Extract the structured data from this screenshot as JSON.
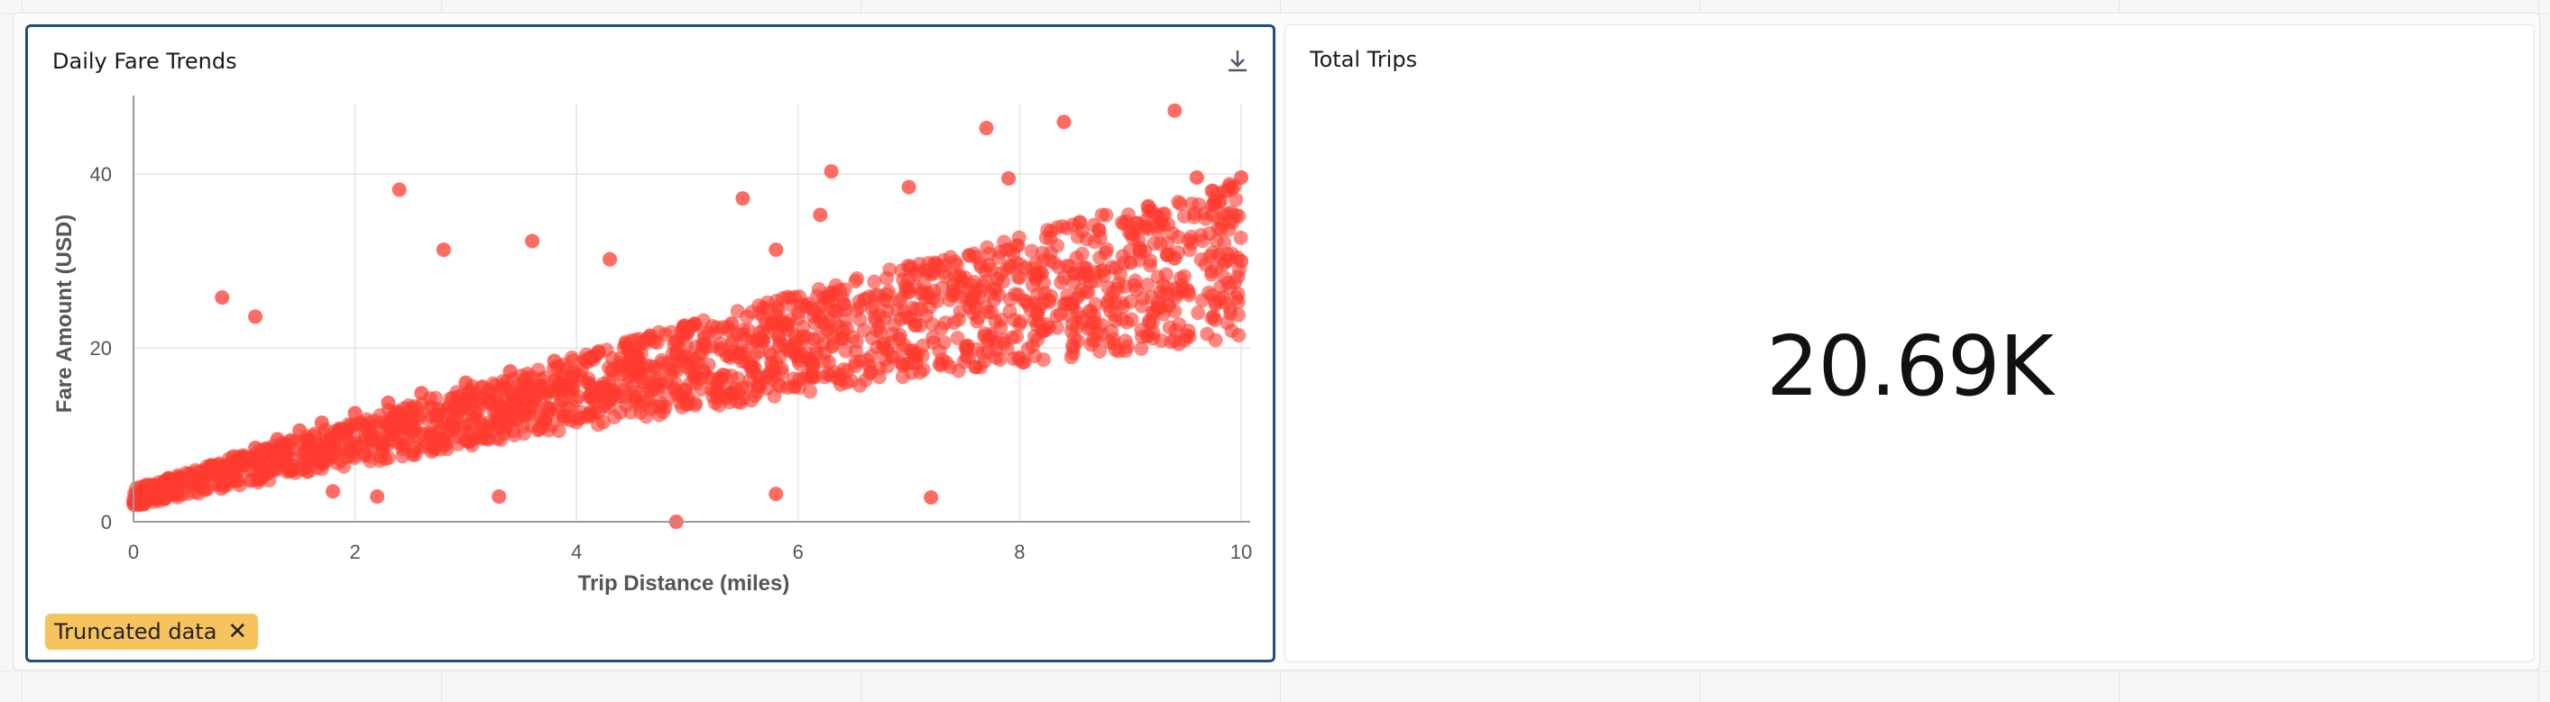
{
  "panels": {
    "chart": {
      "title": "Daily Fare Trends",
      "download_icon": "download-icon",
      "badge": {
        "label": "Truncated data",
        "close_icon": "close-icon"
      }
    },
    "kpi": {
      "title": "Total Trips",
      "value": "20.69K"
    }
  },
  "colors": {
    "accent_border": "#1d4f7c",
    "point": "#ff3b2f",
    "badge": "#f6c35f"
  },
  "chart_data": {
    "type": "scatter",
    "xlabel": "Trip Distance (miles)",
    "ylabel": "Fare Amount (USD)",
    "xlim": [
      0,
      10
    ],
    "ylim": [
      0,
      48
    ],
    "x_ticks": [
      0,
      2,
      4,
      6,
      8,
      10
    ],
    "y_ticks": [
      0,
      20,
      40
    ],
    "grid": true,
    "series": [
      {
        "points": [
          [
            0.0,
            2.5
          ],
          [
            0.1,
            3.2
          ],
          [
            0.2,
            4.0
          ],
          [
            0.3,
            4.5
          ],
          [
            0.5,
            5.5
          ],
          [
            0.7,
            6.5
          ],
          [
            0.9,
            7.5
          ],
          [
            1.1,
            8.5
          ],
          [
            1.3,
            9.5
          ],
          [
            1.5,
            10.5
          ],
          [
            1.7,
            11.4
          ],
          [
            2.0,
            12.5
          ],
          [
            2.3,
            13.7
          ],
          [
            2.6,
            14.8
          ],
          [
            3.0,
            16.0
          ],
          [
            3.4,
            17.3
          ],
          [
            3.8,
            18.5
          ],
          [
            4.2,
            19.6
          ],
          [
            4.6,
            20.7
          ],
          [
            5.0,
            21.8
          ],
          [
            5.4,
            22.8
          ],
          [
            5.8,
            23.8
          ],
          [
            6.2,
            24.7
          ],
          [
            6.6,
            25.6
          ],
          [
            7.0,
            26.4
          ],
          [
            7.4,
            27.2
          ],
          [
            7.8,
            27.9
          ],
          [
            8.2,
            28.6
          ],
          [
            8.6,
            29.2
          ],
          [
            9.0,
            29.8
          ],
          [
            9.4,
            30.3
          ],
          [
            9.8,
            30.7
          ],
          [
            10.0,
            30.0
          ],
          [
            0.8,
            25.8
          ],
          [
            1.1,
            23.6
          ],
          [
            2.4,
            38.2
          ],
          [
            2.8,
            31.3
          ],
          [
            3.6,
            32.3
          ],
          [
            4.3,
            30.2
          ],
          [
            5.5,
            37.2
          ],
          [
            5.8,
            31.3
          ],
          [
            6.2,
            35.3
          ],
          [
            6.3,
            40.3
          ],
          [
            7.0,
            38.5
          ],
          [
            7.7,
            45.3
          ],
          [
            7.9,
            39.5
          ],
          [
            8.4,
            46.0
          ],
          [
            9.4,
            47.3
          ],
          [
            9.6,
            39.6
          ],
          [
            10.0,
            39.6
          ],
          [
            1.8,
            3.5
          ],
          [
            2.2,
            2.9
          ],
          [
            3.3,
            2.9
          ],
          [
            4.9,
            0.0
          ],
          [
            5.8,
            3.2
          ],
          [
            7.2,
            2.8
          ]
        ]
      }
    ]
  }
}
